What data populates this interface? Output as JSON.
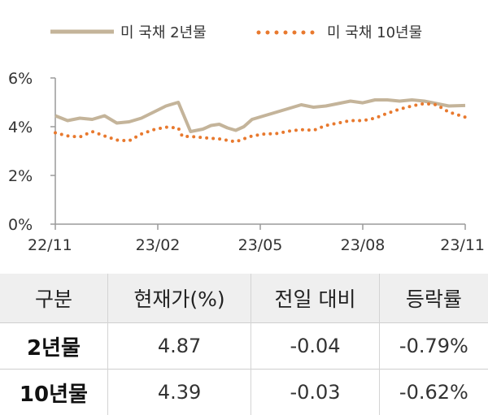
{
  "chart_data": {
    "type": "line",
    "legend_placement": "top",
    "x_tick_labels": [
      "22/11",
      "23/02",
      "23/05",
      "23/08",
      "23/11"
    ],
    "y_tick_labels": [
      "0%",
      "2%",
      "4%",
      "6%"
    ],
    "ylim": [
      0,
      6
    ],
    "grid": false,
    "series": [
      {
        "name": "미 국채 2년물",
        "color": "#c4b49a",
        "style": "solid",
        "x": [
          0,
          0.03,
          0.06,
          0.09,
          0.12,
          0.15,
          0.18,
          0.21,
          0.24,
          0.27,
          0.3,
          0.33,
          0.36,
          0.38,
          0.4,
          0.42,
          0.44,
          0.46,
          0.48,
          0.51,
          0.54,
          0.57,
          0.6,
          0.63,
          0.66,
          0.69,
          0.72,
          0.75,
          0.78,
          0.81,
          0.84,
          0.87,
          0.9,
          0.93,
          0.96,
          1.0
        ],
        "values": [
          4.45,
          4.25,
          4.35,
          4.3,
          4.45,
          4.15,
          4.2,
          4.35,
          4.6,
          4.85,
          5.0,
          3.8,
          3.9,
          4.05,
          4.1,
          3.95,
          3.85,
          4.0,
          4.3,
          4.45,
          4.6,
          4.75,
          4.9,
          4.8,
          4.85,
          4.95,
          5.05,
          4.98,
          5.1,
          5.1,
          5.05,
          5.1,
          5.05,
          4.95,
          4.85,
          4.87
        ]
      },
      {
        "name": "미 국채 10년물",
        "color": "#e8792e",
        "style": "dotted",
        "x": [
          0,
          0.03,
          0.06,
          0.09,
          0.12,
          0.15,
          0.18,
          0.21,
          0.24,
          0.27,
          0.3,
          0.31,
          0.33,
          0.36,
          0.4,
          0.44,
          0.46,
          0.48,
          0.51,
          0.54,
          0.57,
          0.6,
          0.63,
          0.66,
          0.69,
          0.72,
          0.75,
          0.78,
          0.81,
          0.84,
          0.87,
          0.9,
          0.93,
          0.96,
          1.0
        ],
        "values": [
          3.75,
          3.62,
          3.58,
          3.8,
          3.62,
          3.45,
          3.42,
          3.7,
          3.88,
          3.98,
          3.95,
          3.6,
          3.6,
          3.55,
          3.5,
          3.38,
          3.5,
          3.62,
          3.7,
          3.72,
          3.82,
          3.88,
          3.85,
          4.05,
          4.15,
          4.25,
          4.25,
          4.35,
          4.55,
          4.72,
          4.85,
          4.95,
          4.9,
          4.6,
          4.39
        ]
      }
    ]
  },
  "table": {
    "headers": [
      "구분",
      "현재가(%)",
      "전일 대비",
      "등락률"
    ],
    "rows": [
      [
        "2년물",
        "4.87",
        "-0.04",
        "-0.79%"
      ],
      [
        "10년물",
        "4.39",
        "-0.03",
        "-0.62%"
      ]
    ]
  }
}
